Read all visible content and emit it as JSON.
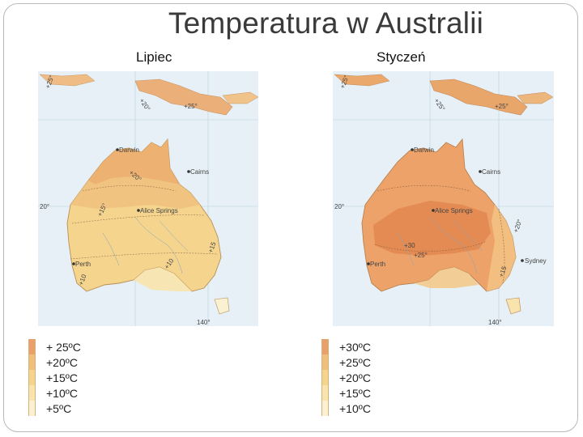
{
  "title": "Temperatura w Australii",
  "maps": [
    {
      "label": "Lipiec",
      "places": [
        "Darwin",
        "Cairns",
        "Alice Springs",
        "Perth"
      ],
      "isotherms": [
        "+25°",
        "+20°",
        "+15°",
        "+15",
        "+10",
        "+10"
      ],
      "graticule": [
        "20°",
        "140°"
      ],
      "legend": [
        {
          "label": "+ 25ºC",
          "color": "#e9a06a"
        },
        {
          "label": "+20ºC",
          "color": "#f0bf7b"
        },
        {
          "label": "+15ºC",
          "color": "#f5d48e"
        },
        {
          "label": "+10ºC",
          "color": "#f8e4ac"
        },
        {
          "label": "+5ºC",
          "color": "#faf0d2"
        }
      ]
    },
    {
      "label": "Styczeń",
      "places": [
        "Darwin",
        "Cairns",
        "Alice Springs",
        "Perth",
        "Sydney"
      ],
      "isotherms": [
        "+25°",
        "+25°",
        "+30",
        "+25°",
        "+20°",
        "+15"
      ],
      "graticule": [
        "20°",
        "140°"
      ],
      "legend": [
        {
          "label": "+30ºC",
          "color": "#e9a06a"
        },
        {
          "label": "+25ºC",
          "color": "#f0bf7b"
        },
        {
          "label": "+20ºC",
          "color": "#f5d48e"
        },
        {
          "label": "+15ºC",
          "color": "#f8e4ac"
        },
        {
          "label": "+10ºC",
          "color": "#faf0d2"
        }
      ]
    }
  ]
}
